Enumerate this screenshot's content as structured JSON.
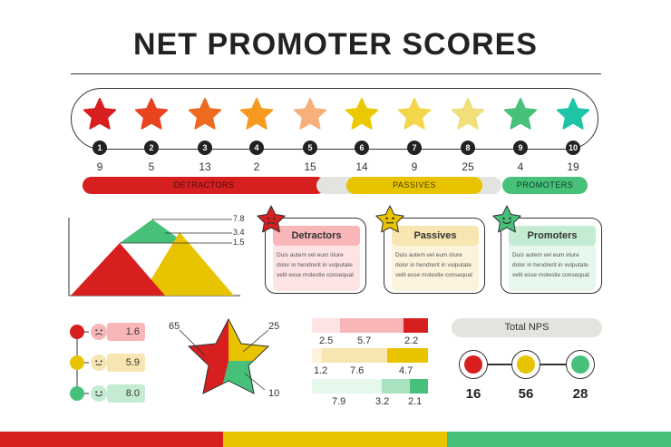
{
  "title": "NET PROMOTER SCORES",
  "colors": {
    "red": "#d71f1f",
    "orange": "#ee5a1e",
    "yellow": "#e8c300",
    "green": "#47c07a",
    "teal": "#1ec4a6",
    "pink_light": "#f8b6b8",
    "yellow_light": "#f7e6b1",
    "green_light": "#c4ecd2"
  },
  "scale": [
    {
      "score": "1",
      "count": "9",
      "color": "#d71f1f"
    },
    {
      "score": "2",
      "count": "5",
      "color": "#e9431f"
    },
    {
      "score": "3",
      "count": "13",
      "color": "#ee6a1e"
    },
    {
      "score": "4",
      "count": "2",
      "color": "#f59a1e"
    },
    {
      "score": "5",
      "count": "15",
      "color": "#f7b07a"
    },
    {
      "score": "6",
      "count": "14",
      "color": "#ecc800"
    },
    {
      "score": "7",
      "count": "9",
      "color": "#f3d64b"
    },
    {
      "score": "8",
      "count": "25",
      "color": "#efe07b"
    },
    {
      "score": "9",
      "count": "4",
      "color": "#47c07a"
    },
    {
      "score": "10",
      "count": "19",
      "color": "#1ec4a6"
    }
  ],
  "groups": {
    "detractors": "DETRACTORS",
    "passives": "PASSIVES",
    "promoters": "PROMOTERS"
  },
  "cards": [
    {
      "title": "Detractors",
      "text": "Duis autem vel eum iriure dolor in hendrerit in vulputate velit esse molestie consequat",
      "mood": "sad"
    },
    {
      "title": "Passives",
      "text": "Duis autem vel eum iriure dolor in hendrerit in vulputate velit esse molestie consequat",
      "mood": "neutral"
    },
    {
      "title": "Promoters",
      "text": "Duis autem vel eum iriure dolor in hendrerit in vulputate velit esse molestie consequat",
      "mood": "happy"
    }
  ],
  "triangle_labels": [
    "7.8",
    "3.4",
    "1.5"
  ],
  "sentiment_rows": [
    {
      "mood": "sad",
      "value": "1.6"
    },
    {
      "mood": "neutral",
      "value": "5.9"
    },
    {
      "mood": "happy",
      "value": "8.0"
    }
  ],
  "star_chart_labels": [
    "65",
    "25",
    "10"
  ],
  "stacked_bars": [
    {
      "values": [
        "2.5",
        "5.7",
        "2.2"
      ]
    },
    {
      "values": [
        "1.2",
        "7.6",
        "4.7"
      ]
    },
    {
      "values": [
        "7.9",
        "3.2",
        "2.1"
      ]
    }
  ],
  "total_nps": {
    "label": "Total NPS",
    "values": [
      "16",
      "56",
      "28"
    ]
  }
}
